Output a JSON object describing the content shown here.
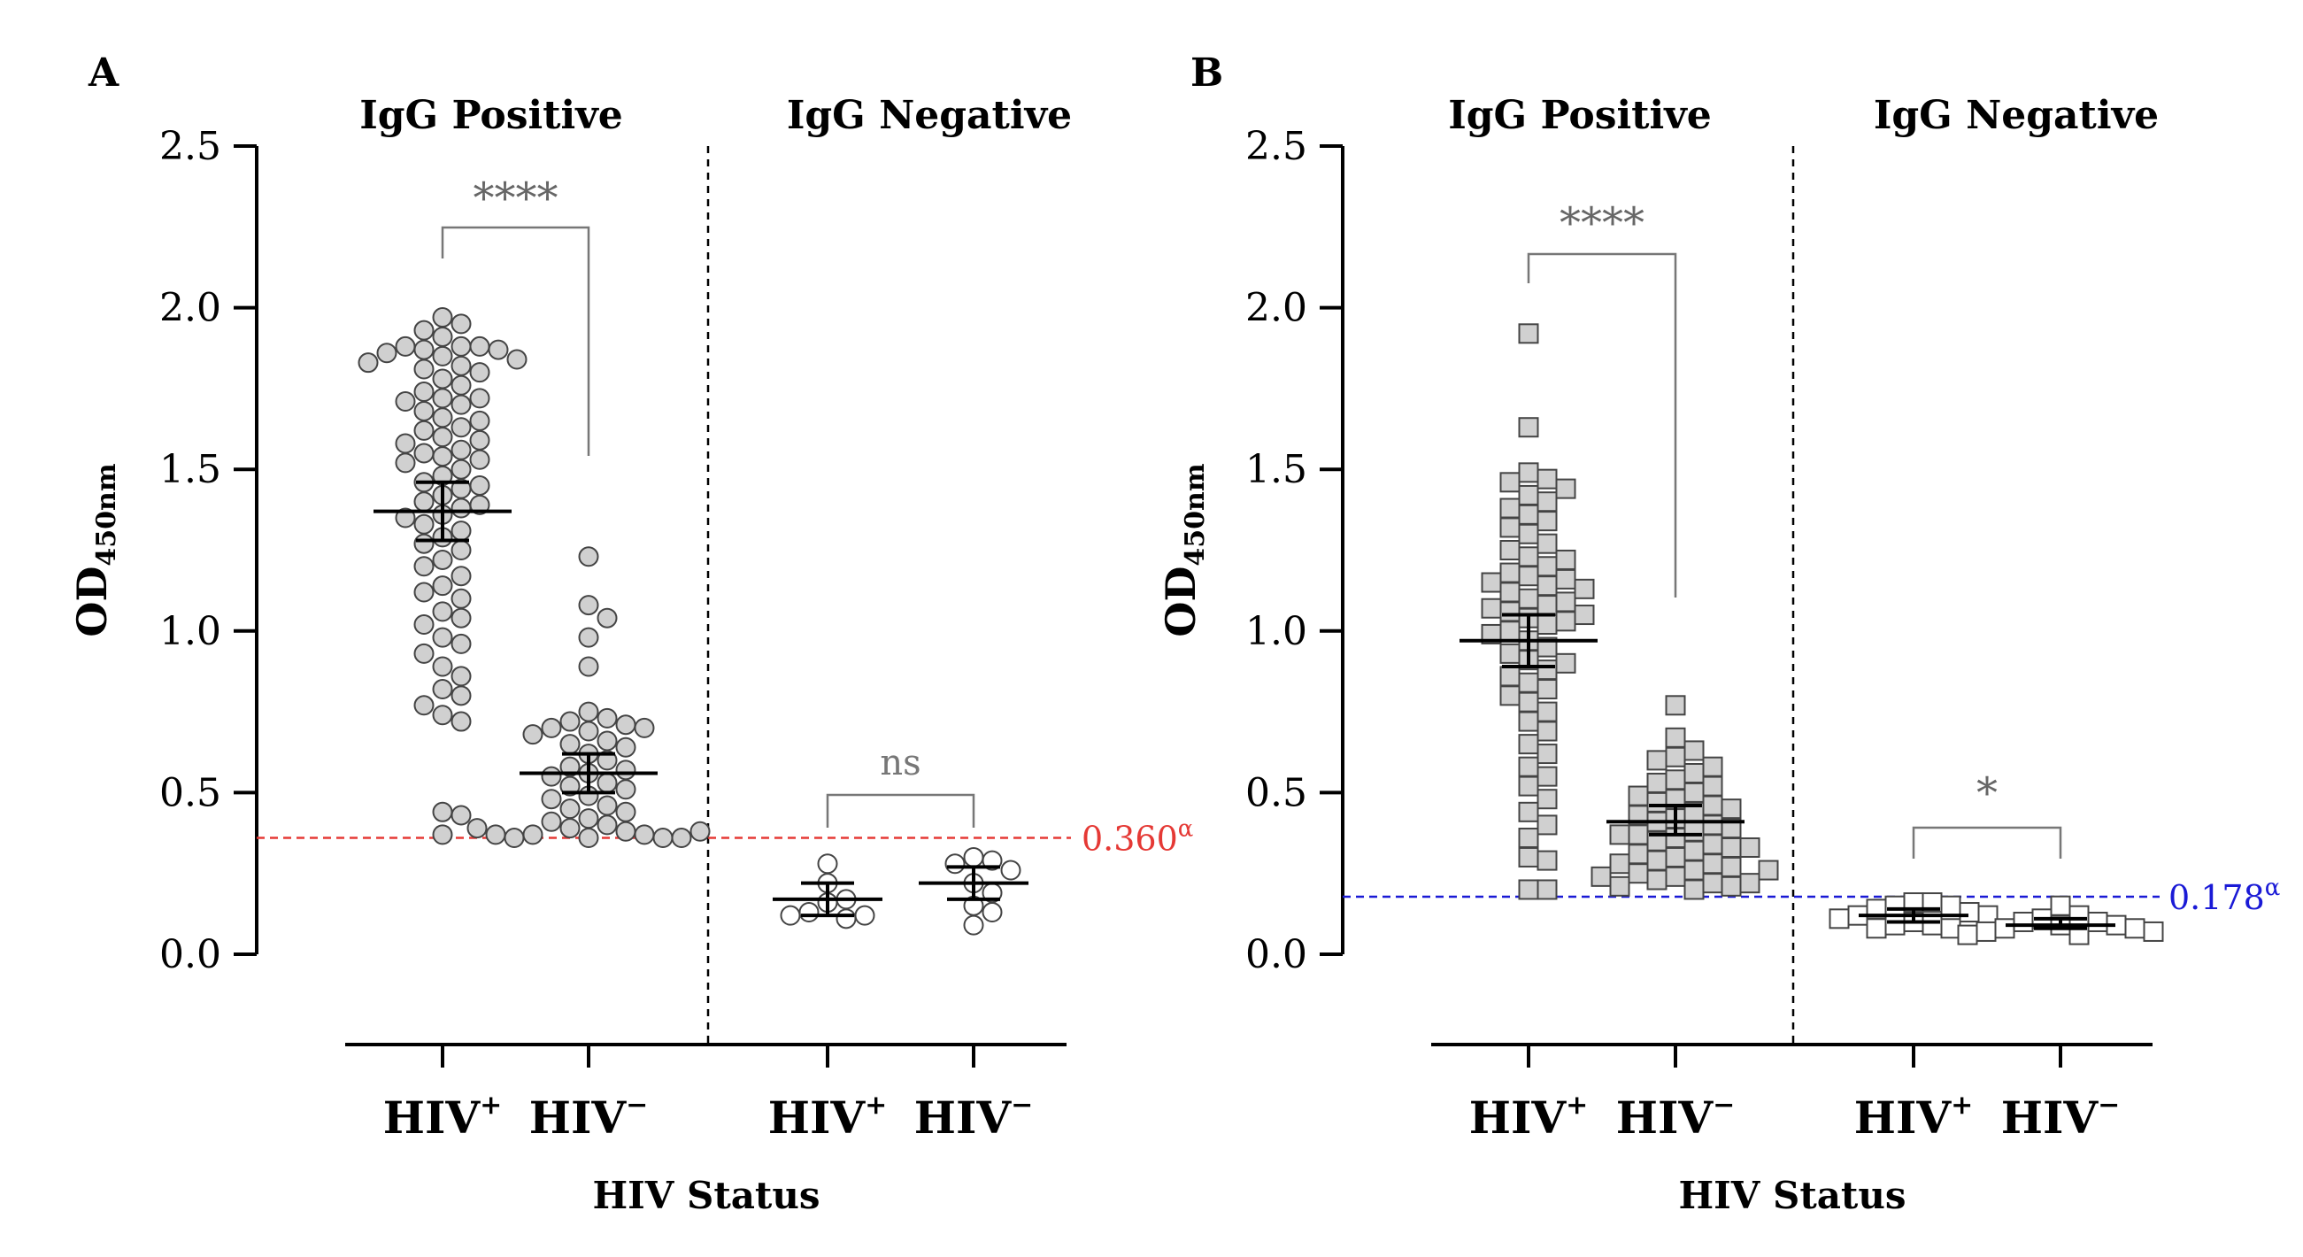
{
  "colors": {
    "axis": "#000000",
    "marker_fill_pos": "#d0d0d0",
    "marker_fill_neg": "#ffffff",
    "marker_stroke": "#444444",
    "bracket": "#777777",
    "cutoff_A": "#e53935",
    "cutoff_B": "#1a1ad6"
  },
  "chart_data": [
    {
      "panel": "A",
      "type": "scatter",
      "marker": "circle",
      "ylabel": "OD",
      "ylabel_sub": "450nm",
      "xlabel": "HIV Status",
      "ylim": [
        0,
        2.5
      ],
      "yticks": [
        "0.0",
        "0.5",
        "1.0",
        "1.5",
        "2.0",
        "2.5"
      ],
      "groups": [
        {
          "title": "IgG Positive",
          "categories": [
            {
              "label": "HIV",
              "sup": "+",
              "fill": "pos",
              "mean": 1.37,
              "ci": [
                1.28,
                1.46
              ],
              "values": [
                1.97,
                1.95,
                1.93,
                1.91,
                1.88,
                1.88,
                1.88,
                1.87,
                1.87,
                1.86,
                1.85,
                1.84,
                1.83,
                1.82,
                1.81,
                1.8,
                1.78,
                1.76,
                1.74,
                1.72,
                1.72,
                1.71,
                1.7,
                1.68,
                1.66,
                1.65,
                1.63,
                1.62,
                1.6,
                1.59,
                1.58,
                1.56,
                1.55,
                1.54,
                1.53,
                1.52,
                1.5,
                1.48,
                1.46,
                1.45,
                1.44,
                1.42,
                1.4,
                1.39,
                1.38,
                1.36,
                1.35,
                1.33,
                1.31,
                1.29,
                1.27,
                1.25,
                1.22,
                1.2,
                1.17,
                1.14,
                1.12,
                1.1,
                1.06,
                1.04,
                1.02,
                0.98,
                0.96,
                0.93,
                0.89,
                0.86,
                0.82,
                0.8,
                0.77,
                0.74,
                0.72,
                0.44,
                0.43,
                0.37
              ]
            },
            {
              "label": "HIV",
              "sup": "−",
              "fill": "pos",
              "mean": 0.56,
              "ci": [
                0.5,
                0.62
              ],
              "values": [
                1.23,
                1.08,
                1.04,
                0.98,
                0.89,
                0.75,
                0.73,
                0.72,
                0.71,
                0.7,
                0.7,
                0.69,
                0.68,
                0.66,
                0.65,
                0.64,
                0.62,
                0.6,
                0.58,
                0.57,
                0.56,
                0.55,
                0.53,
                0.52,
                0.51,
                0.49,
                0.48,
                0.46,
                0.45,
                0.44,
                0.42,
                0.41,
                0.4,
                0.39,
                0.38,
                0.37,
                0.37,
                0.36,
                0.36,
                0.36,
                0.36,
                0.37,
                0.38,
                0.39
              ]
            }
          ],
          "sig": "****"
        },
        {
          "title": "IgG Negative",
          "categories": [
            {
              "label": "HIV",
              "sup": "+",
              "fill": "neg",
              "mean": 0.17,
              "ci": [
                0.12,
                0.22
              ],
              "values": [
                0.28,
                0.22,
                0.17,
                0.16,
                0.13,
                0.12,
                0.11,
                0.12
              ]
            },
            {
              "label": "HIV",
              "sup": "−",
              "fill": "neg",
              "mean": 0.22,
              "ci": [
                0.17,
                0.27
              ],
              "values": [
                0.3,
                0.29,
                0.28,
                0.26,
                0.22,
                0.19,
                0.15,
                0.13,
                0.09
              ]
            }
          ],
          "sig": "ns"
        }
      ],
      "cutoff": {
        "value": 0.36,
        "label": "0.360",
        "sup": "α"
      }
    },
    {
      "panel": "B",
      "type": "scatter",
      "marker": "square",
      "ylabel": "OD",
      "ylabel_sub": "450nm",
      "xlabel": "HIV Status",
      "ylim": [
        0,
        2.5
      ],
      "yticks": [
        "0.0",
        "0.5",
        "1.0",
        "1.5",
        "2.0",
        "2.5"
      ],
      "groups": [
        {
          "title": "IgG Positive",
          "categories": [
            {
              "label": "HIV",
              "sup": "+",
              "fill": "pos",
              "mean": 0.97,
              "ci": [
                0.89,
                1.05
              ],
              "values": [
                1.92,
                1.63,
                1.49,
                1.47,
                1.46,
                1.44,
                1.42,
                1.4,
                1.38,
                1.36,
                1.34,
                1.32,
                1.3,
                1.27,
                1.25,
                1.23,
                1.22,
                1.2,
                1.18,
                1.17,
                1.16,
                1.15,
                1.14,
                1.13,
                1.12,
                1.1,
                1.09,
                1.08,
                1.07,
                1.06,
                1.05,
                1.04,
                1.03,
                1.02,
                1.0,
                0.99,
                0.97,
                0.95,
                0.93,
                0.91,
                0.9,
                0.88,
                0.86,
                0.84,
                0.82,
                0.8,
                0.78,
                0.75,
                0.72,
                0.69,
                0.65,
                0.62,
                0.58,
                0.55,
                0.52,
                0.48,
                0.44,
                0.4,
                0.36,
                0.3,
                0.29,
                0.2,
                0.2
              ]
            },
            {
              "label": "HIV",
              "sup": "−",
              "fill": "pos",
              "mean": 0.41,
              "ci": [
                0.37,
                0.46
              ],
              "values": [
                0.77,
                0.67,
                0.63,
                0.61,
                0.6,
                0.58,
                0.56,
                0.54,
                0.53,
                0.52,
                0.5,
                0.49,
                0.48,
                0.47,
                0.46,
                0.45,
                0.44,
                0.43,
                0.42,
                0.41,
                0.4,
                0.39,
                0.38,
                0.37,
                0.36,
                0.35,
                0.34,
                0.33,
                0.32,
                0.31,
                0.3,
                0.29,
                0.28,
                0.27,
                0.26,
                0.25,
                0.24,
                0.23,
                0.22,
                0.21,
                0.21,
                0.2,
                0.22,
                0.24,
                0.26,
                0.28,
                0.33,
                0.37
              ]
            }
          ],
          "sig": "****"
        },
        {
          "title": "IgG Negative",
          "categories": [
            {
              "label": "HIV",
              "sup": "+",
              "fill": "neg",
              "mean": 0.12,
              "ci": [
                0.1,
                0.14
              ],
              "values": [
                0.16,
                0.16,
                0.15,
                0.15,
                0.14,
                0.13,
                0.12,
                0.12,
                0.11,
                0.1,
                0.09,
                0.09,
                0.08,
                0.08
              ]
            },
            {
              "label": "HIV",
              "sup": "−",
              "fill": "neg",
              "mean": 0.09,
              "ci": [
                0.08,
                0.11
              ],
              "values": [
                0.15,
                0.12,
                0.11,
                0.1,
                0.1,
                0.09,
                0.09,
                0.08,
                0.08,
                0.07,
                0.07,
                0.06,
                0.06
              ]
            }
          ],
          "sig": "*"
        }
      ],
      "cutoff": {
        "value": 0.178,
        "label": "0.178",
        "sup": "α"
      }
    }
  ]
}
